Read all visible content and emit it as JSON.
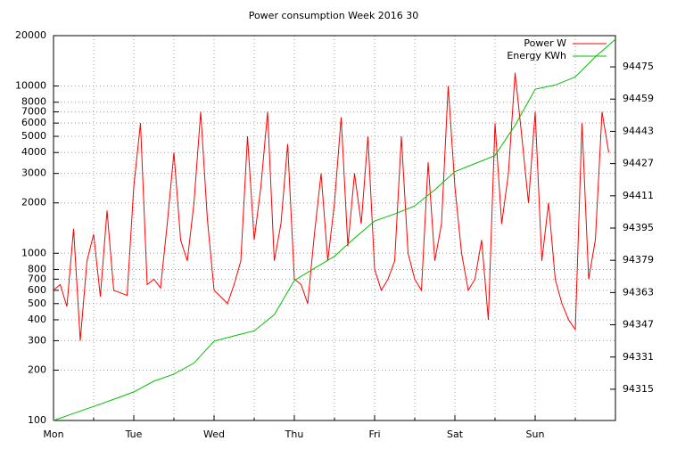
{
  "chart_data": {
    "type": "line",
    "title": "Power consumption Week 2016 30",
    "ylog": true,
    "grid": true,
    "legend": "top-right",
    "xlim": [
      0,
      168
    ],
    "xticks": [
      {
        "value": 0,
        "label": "Mon"
      },
      {
        "value": 24,
        "label": "Tue"
      },
      {
        "value": 48,
        "label": "Wed"
      },
      {
        "value": 72,
        "label": "Thu"
      },
      {
        "value": 96,
        "label": "Fri"
      },
      {
        "value": 120,
        "label": "Sat"
      },
      {
        "value": 144,
        "label": "Sun"
      }
    ],
    "xminor": [
      12,
      36,
      60,
      84,
      108,
      132,
      156
    ],
    "ylim": [
      100,
      20000
    ],
    "yticks": [
      100,
      200,
      300,
      400,
      500,
      600,
      700,
      800,
      1000,
      2000,
      3000,
      4000,
      5000,
      6000,
      7000,
      8000,
      10000,
      20000
    ],
    "y2lim": [
      94299.5,
      94490.5
    ],
    "y2ticks": [
      94315,
      94331,
      94347,
      94363,
      94379,
      94395,
      94411,
      94427,
      94443,
      94459,
      94475
    ],
    "series": [
      {
        "name": "Power W",
        "color": "#ff0000",
        "x": [
          0,
          2,
          4,
          6,
          8,
          10,
          12,
          14,
          16,
          18,
          20,
          22,
          24,
          26,
          28,
          30,
          32,
          34,
          36,
          38,
          40,
          42,
          44,
          46,
          48,
          50,
          52,
          54,
          56,
          58,
          60,
          62,
          64,
          66,
          68,
          70,
          72,
          74,
          76,
          78,
          80,
          82,
          84,
          86,
          88,
          90,
          92,
          94,
          96,
          98,
          100,
          102,
          104,
          106,
          108,
          110,
          112,
          114,
          116,
          118,
          120,
          122,
          124,
          126,
          128,
          130,
          132,
          134,
          136,
          138,
          140,
          142,
          144,
          146,
          148,
          150,
          152,
          154,
          156,
          158,
          160,
          162,
          164,
          166
        ],
        "values": [
          600,
          650,
          480,
          1400,
          300,
          900,
          1300,
          550,
          1800,
          600,
          580,
          560,
          2500,
          6000,
          650,
          700,
          620,
          1500,
          4000,
          1200,
          900,
          2000,
          7000,
          1600,
          600,
          550,
          500,
          650,
          900,
          5000,
          1200,
          2500,
          7000,
          900,
          1500,
          4500,
          700,
          650,
          500,
          1300,
          3000,
          900,
          2000,
          6500,
          1100,
          3000,
          1500,
          5000,
          800,
          600,
          700,
          900,
          5000,
          1000,
          700,
          600,
          3500,
          900,
          1500,
          10000,
          2500,
          1000,
          600,
          700,
          1200,
          400,
          6000,
          1500,
          3000,
          12000,
          5000,
          2000,
          7000,
          900,
          2000,
          700,
          500,
          400,
          350,
          6000,
          700,
          1200,
          7000,
          4000
        ]
      },
      {
        "name": "Energy KWh",
        "color": "#00c000",
        "axis": "y2",
        "x": [
          0,
          6,
          12,
          18,
          24,
          30,
          36,
          42,
          48,
          54,
          60,
          66,
          72,
          78,
          84,
          90,
          96,
          102,
          108,
          114,
          120,
          126,
          132,
          138,
          144,
          150,
          156,
          162,
          168
        ],
        "values": [
          94299.5,
          94303,
          94306.5,
          94310,
          94313.7,
          94319,
          94322.5,
          94328,
          94338.9,
          94341.5,
          94344,
          94352,
          94369,
          94375,
          94381,
          94390,
          94398.5,
          94402,
          94406,
          94414,
          94423,
          94427,
          94431,
          94446,
          94463.9,
          94466,
          94470,
          94480,
          94488.7
        ]
      }
    ]
  }
}
